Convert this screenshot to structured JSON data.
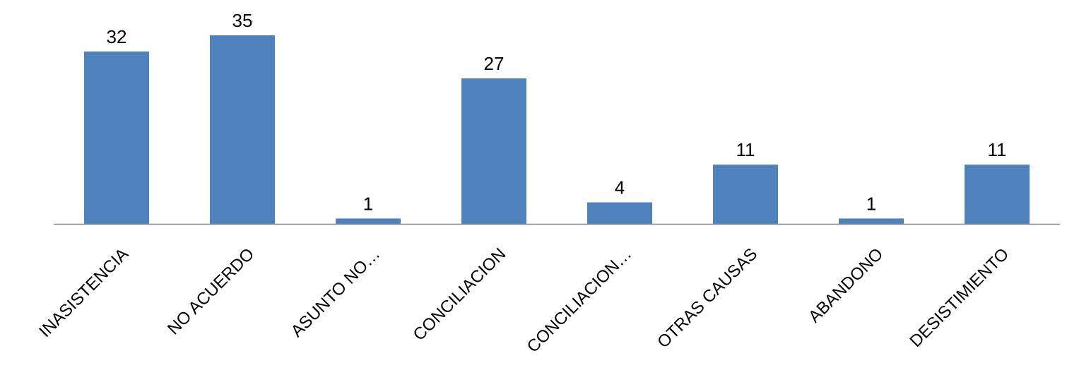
{
  "chart_data": {
    "type": "bar",
    "categories": [
      "INASISTENCIA",
      "NO ACUERDO",
      "ASUNTO NO…",
      "CONCILIACION",
      "CONCILIACION…",
      "OTRAS CAUSAS",
      "ABANDONO",
      "DESISTIMIENTO"
    ],
    "values": [
      32,
      35,
      1,
      27,
      4,
      11,
      1,
      11
    ],
    "ylim": [
      0,
      35
    ],
    "grid": false,
    "legend": "none",
    "colors": {
      "bar": "#4F81BD",
      "axis": "#868686"
    }
  }
}
